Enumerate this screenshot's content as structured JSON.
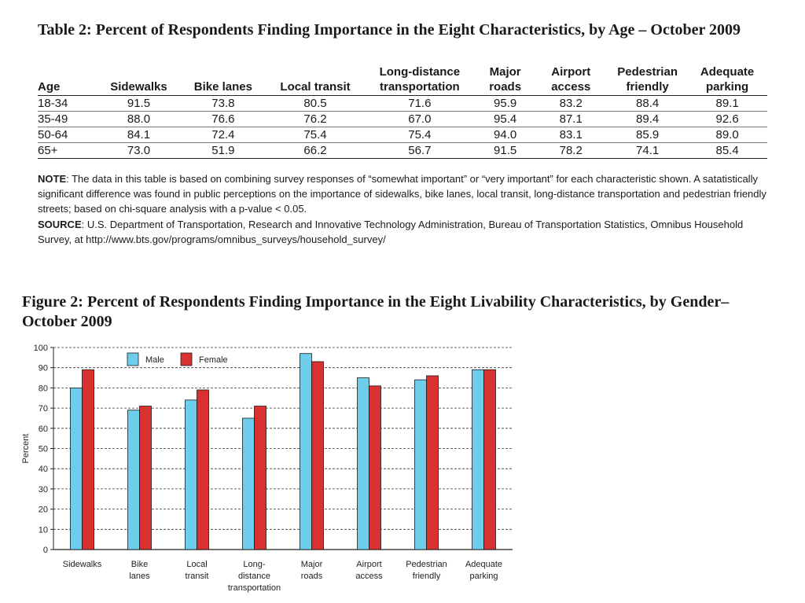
{
  "table": {
    "title": "Table 2:    Percent of Respondents Finding Importance in the Eight Characteristics, by Age – October 2009",
    "headers": [
      "Age",
      "Sidewalks",
      "Bike lanes",
      "Local transit",
      "Long-distance transportation",
      "Major roads",
      "Airport access",
      "Pedestrian friendly",
      "Adequate parking"
    ],
    "header_lines": [
      [
        "Age"
      ],
      [
        "Sidewalks"
      ],
      [
        "Bike lanes"
      ],
      [
        "Local transit"
      ],
      [
        "Long-distance",
        "transportation"
      ],
      [
        "Major",
        "roads"
      ],
      [
        "Airport",
        "access"
      ],
      [
        "Pedestrian",
        "friendly"
      ],
      [
        "Adequate",
        "parking"
      ]
    ],
    "rows": [
      [
        "18-34",
        "91.5",
        "73.8",
        "80.5",
        "71.6",
        "95.9",
        "83.2",
        "88.4",
        "89.1"
      ],
      [
        "35-49",
        "88.0",
        "76.6",
        "76.2",
        "67.0",
        "95.4",
        "87.1",
        "89.4",
        "92.6"
      ],
      [
        "50-64",
        "84.1",
        "72.4",
        "75.4",
        "75.4",
        "94.0",
        "83.1",
        "85.9",
        "89.0"
      ],
      [
        "65+",
        "73.0",
        "51.9",
        "66.2",
        "56.7",
        "91.5",
        "78.2",
        "74.1",
        "85.4"
      ]
    ],
    "note_label": "NOTE",
    "note_text": ": The data in this table is based on combining survey responses of “somewhat important” or “very important” for each characteristic shown. A satatistically significant difference was found in public perceptions on the importance of sidewalks, bike lanes, local transit, long-distance transportation and pedestrian friendly streets; based on chi-square analysis with a p-value < 0.05.",
    "source_label": "SOURCE",
    "source_text": ": U.S. Department of Transportation, Research and Innovative Technology Administration, Bureau of Transportation Statistics, Omnibus Household Survey, at http://www.bts.gov/programs/omnibus_surveys/household_survey/"
  },
  "figure": {
    "title": "Figure 2:    Percent of Respondents Finding Importance in the Eight Livability Characteristics, by Gender–October 2009"
  },
  "chart_data": {
    "type": "bar",
    "title": "Figure 2:    Percent of Respondents Finding Importance in the Eight Livability Characteristics, by Gender–October 2009",
    "xlabel": "",
    "ylabel": "Percent",
    "ylim": [
      0,
      100
    ],
    "yticks": [
      0,
      10,
      20,
      30,
      40,
      50,
      60,
      70,
      80,
      90,
      100
    ],
    "grid": true,
    "legend": "top-left",
    "categories": [
      "Sidewalks",
      "Bike lanes",
      "Local transit",
      "Long-distance transportation",
      "Major roads",
      "Airport access",
      "Pedestrian friendly",
      "Adequate parking"
    ],
    "category_lines": [
      [
        "Sidewalks"
      ],
      [
        "Bike",
        "lanes"
      ],
      [
        "Local",
        "transit"
      ],
      [
        "Long-",
        "distance",
        "transportation"
      ],
      [
        "Major",
        "roads"
      ],
      [
        "Airport",
        "access"
      ],
      [
        "Pedestrian",
        "friendly"
      ],
      [
        "Adequate",
        "parking"
      ]
    ],
    "series": [
      {
        "name": "Male",
        "color": "#6ecdea",
        "values": [
          80,
          69,
          74,
          65,
          97,
          85,
          84,
          89
        ]
      },
      {
        "name": "Female",
        "color": "#d9312f",
        "values": [
          89,
          71,
          79,
          71,
          93,
          81,
          86,
          89
        ]
      }
    ]
  }
}
